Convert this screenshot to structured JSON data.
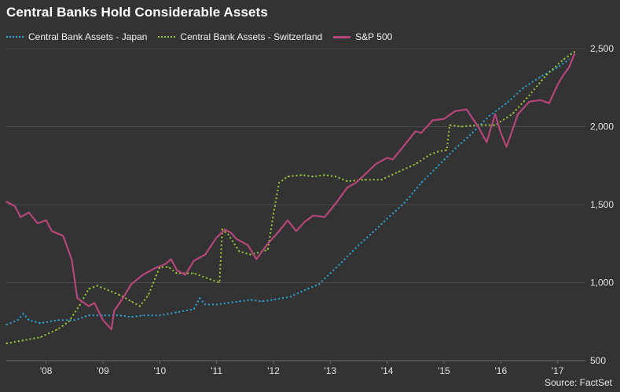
{
  "title": "Central Banks Hold Considerable Assets",
  "source": "Source: FactSet",
  "legend": {
    "japan": "Central Bank Assets - Japan",
    "switzerland": "Central Bank Assets - Switzerland",
    "sp500": "S&P 500"
  },
  "colors": {
    "japan": "#2aa7d9",
    "switzerland": "#9ccc3c",
    "sp500": "#b5457a",
    "grid": "#4a4a4a",
    "axis_text": "#e0e0e0"
  },
  "chart_data": {
    "type": "line",
    "title": "Central Banks Hold Considerable Assets",
    "xlabel": "",
    "ylabel": "",
    "x_range": [
      2007.3,
      2017.35
    ],
    "ylim": [
      500,
      2500
    ],
    "x_ticks": [
      {
        "value": 2008,
        "label": "'08"
      },
      {
        "value": 2009,
        "label": "'09"
      },
      {
        "value": 2010,
        "label": "'10"
      },
      {
        "value": 2011,
        "label": "'11"
      },
      {
        "value": 2012,
        "label": "'12"
      },
      {
        "value": 2013,
        "label": "'13"
      },
      {
        "value": 2014,
        "label": "'14"
      },
      {
        "value": 2015,
        "label": "'15"
      },
      {
        "value": 2016,
        "label": "'16"
      },
      {
        "value": 2017,
        "label": "'17"
      }
    ],
    "y_ticks": [
      {
        "value": 500,
        "label": "500"
      },
      {
        "value": 1000,
        "label": "1,000"
      },
      {
        "value": 1500,
        "label": "1,500"
      },
      {
        "value": 2000,
        "label": "2,000"
      },
      {
        "value": 2500,
        "label": "2,500"
      }
    ],
    "grid": "horizontal",
    "legend_position": "top-left",
    "series": [
      {
        "name": "Central Bank Assets - Japan",
        "style": "dotted",
        "color": "#2aa7d9",
        "x": [
          2007.3,
          2007.5,
          2007.6,
          2007.7,
          2007.9,
          2008.2,
          2008.5,
          2008.75,
          2009.0,
          2009.3,
          2009.5,
          2009.7,
          2010.0,
          2010.3,
          2010.6,
          2010.7,
          2010.8,
          2011.0,
          2011.2,
          2011.4,
          2011.6,
          2011.8,
          2012.0,
          2012.3,
          2012.6,
          2012.8,
          2013.0,
          2013.2,
          2013.5,
          2013.8,
          2014.0,
          2014.3,
          2014.6,
          2014.9,
          2015.2,
          2015.5,
          2015.8,
          2016.1,
          2016.4,
          2016.7,
          2017.0,
          2017.2
        ],
        "y": [
          730,
          760,
          800,
          760,
          740,
          760,
          760,
          790,
          790,
          790,
          780,
          790,
          790,
          810,
          830,
          900,
          860,
          860,
          870,
          880,
          890,
          880,
          890,
          910,
          960,
          990,
          1060,
          1130,
          1240,
          1340,
          1410,
          1510,
          1640,
          1750,
          1860,
          1960,
          2070,
          2150,
          2250,
          2320,
          2380,
          2430
        ]
      },
      {
        "name": "Central Bank Assets - Switzerland",
        "style": "dotted",
        "color": "#9ccc3c",
        "x": [
          2007.3,
          2007.6,
          2007.9,
          2008.2,
          2008.4,
          2008.6,
          2008.75,
          2008.9,
          2009.1,
          2009.3,
          2009.5,
          2009.65,
          2009.8,
          2010.0,
          2010.15,
          2010.3,
          2010.6,
          2010.9,
          2011.05,
          2011.1,
          2011.2,
          2011.4,
          2011.6,
          2011.9,
          2012.0,
          2012.1,
          2012.25,
          2012.5,
          2012.7,
          2012.9,
          2013.1,
          2013.3,
          2013.6,
          2013.9,
          2014.2,
          2014.5,
          2014.75,
          2014.9,
          2015.05,
          2015.1,
          2015.3,
          2015.6,
          2015.9,
          2016.2,
          2016.5,
          2016.8,
          2017.1,
          2017.3
        ],
        "y": [
          610,
          630,
          650,
          700,
          750,
          860,
          960,
          980,
          950,
          920,
          880,
          850,
          920,
          1100,
          1100,
          1060,
          1060,
          1020,
          1000,
          1340,
          1310,
          1200,
          1180,
          1210,
          1440,
          1640,
          1680,
          1690,
          1680,
          1690,
          1680,
          1650,
          1660,
          1660,
          1710,
          1760,
          1820,
          1840,
          1850,
          2010,
          2000,
          2010,
          2010,
          2080,
          2200,
          2330,
          2430,
          2480
        ]
      },
      {
        "name": "S&P 500",
        "style": "solid",
        "color": "#b5457a",
        "x": [
          2007.3,
          2007.45,
          2007.55,
          2007.7,
          2007.85,
          2008.0,
          2008.1,
          2008.3,
          2008.45,
          2008.55,
          2008.75,
          2008.85,
          2009.0,
          2009.15,
          2009.2,
          2009.35,
          2009.5,
          2009.7,
          2009.9,
          2010.1,
          2010.2,
          2010.3,
          2010.45,
          2010.6,
          2010.8,
          2011.0,
          2011.15,
          2011.25,
          2011.35,
          2011.55,
          2011.7,
          2011.9,
          2012.1,
          2012.25,
          2012.4,
          2012.55,
          2012.7,
          2012.9,
          2013.1,
          2013.3,
          2013.45,
          2013.6,
          2013.8,
          2014.0,
          2014.1,
          2014.3,
          2014.5,
          2014.6,
          2014.8,
          2015.0,
          2015.2,
          2015.4,
          2015.6,
          2015.75,
          2015.9,
          2016.0,
          2016.1,
          2016.3,
          2016.5,
          2016.7,
          2016.85,
          2017.0,
          2017.1,
          2017.2,
          2017.3
        ],
        "y": [
          1520,
          1490,
          1420,
          1450,
          1380,
          1400,
          1330,
          1300,
          1150,
          900,
          850,
          870,
          760,
          700,
          820,
          900,
          990,
          1050,
          1090,
          1120,
          1150,
          1080,
          1050,
          1140,
          1180,
          1290,
          1340,
          1320,
          1280,
          1240,
          1150,
          1250,
          1330,
          1400,
          1330,
          1390,
          1430,
          1420,
          1510,
          1610,
          1640,
          1690,
          1760,
          1800,
          1790,
          1880,
          1970,
          1960,
          2040,
          2050,
          2100,
          2110,
          2000,
          1900,
          2080,
          1960,
          1870,
          2080,
          2160,
          2170,
          2150,
          2270,
          2330,
          2380,
          2470
        ]
      }
    ]
  }
}
